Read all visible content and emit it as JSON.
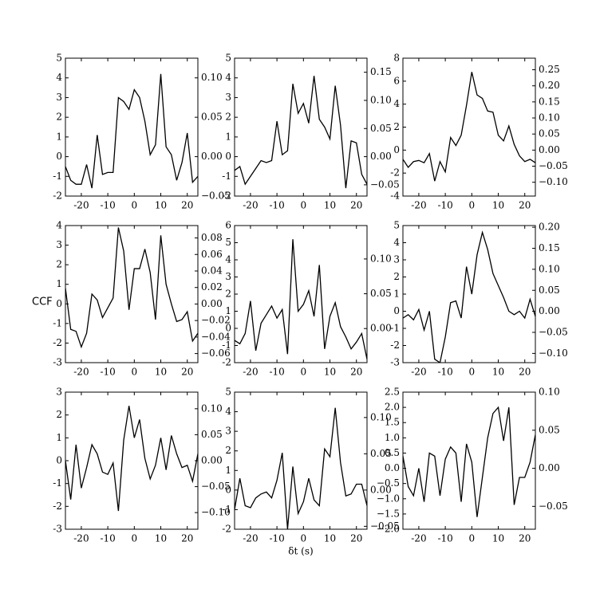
{
  "chart_data": [
    {
      "type": "line",
      "color": "#000000",
      "x": [
        -26,
        -24,
        -22,
        -20,
        -18,
        -16,
        -14,
        -12,
        -10,
        -8,
        -6,
        -4,
        -2,
        0,
        2,
        4,
        6,
        8,
        10,
        12,
        14,
        16,
        18,
        20,
        22,
        24
      ],
      "values": [
        -0.5,
        -1.2,
        -1.4,
        -1.4,
        -0.4,
        -1.6,
        1.1,
        -0.9,
        -0.8,
        -0.8,
        3.0,
        2.8,
        2.4,
        3.4,
        3.0,
        1.8,
        0.1,
        0.6,
        4.2,
        0.5,
        0.1,
        -1.2,
        -0.3,
        1.2,
        -1.3,
        -1.0
      ],
      "xlim": [
        -26,
        24
      ],
      "xticks": [
        -20,
        -10,
        0,
        10,
        20
      ],
      "ylim": [
        -2,
        5
      ],
      "yticks": [
        -2,
        -1,
        0,
        1,
        2,
        3,
        4,
        5
      ],
      "y2lim": [
        -0.05,
        0.125
      ],
      "y2ticks": [
        {
          "value": -0.05,
          "label": "−0.05"
        },
        {
          "value": 0,
          "label": "0.00"
        },
        {
          "value": 0.05,
          "label": "0.05"
        },
        {
          "value": 0.1,
          "label": "0.10"
        }
      ]
    },
    {
      "type": "line",
      "color": "#000000",
      "x": [
        -26,
        -24,
        -22,
        -20,
        -18,
        -16,
        -14,
        -12,
        -10,
        -8,
        -6,
        -4,
        -2,
        0,
        2,
        4,
        6,
        8,
        10,
        12,
        14,
        16,
        18,
        20,
        22,
        24
      ],
      "values": [
        -0.7,
        -0.5,
        -1.4,
        -1.0,
        -0.6,
        -0.2,
        -0.3,
        -0.2,
        1.8,
        0.1,
        0.3,
        3.7,
        2.2,
        2.7,
        1.7,
        4.1,
        1.9,
        1.5,
        0.9,
        3.6,
        1.6,
        -1.6,
        0.8,
        0.7,
        -0.9,
        -1.4
      ],
      "xlim": [
        -26,
        24
      ],
      "xticks": [
        -20,
        -10,
        0,
        10,
        20
      ],
      "ylim": [
        -2,
        5
      ],
      "yticks": [
        -2,
        -1,
        0,
        1,
        2,
        3,
        4,
        5
      ],
      "y2lim": [
        -0.07,
        0.175
      ],
      "y2ticks": [
        {
          "value": -0.05,
          "label": "−0.05"
        },
        {
          "value": 0,
          "label": "0.00"
        },
        {
          "value": 0.05,
          "label": "0.05"
        },
        {
          "value": 0.1,
          "label": "0.10"
        },
        {
          "value": 0.15,
          "label": "0.15"
        }
      ]
    },
    {
      "type": "line",
      "color": "#000000",
      "x": [
        -26,
        -24,
        -22,
        -20,
        -18,
        -16,
        -14,
        -12,
        -10,
        -8,
        -6,
        -4,
        -2,
        0,
        2,
        4,
        6,
        8,
        10,
        12,
        14,
        16,
        18,
        20,
        22,
        24
      ],
      "values": [
        -0.8,
        -1.5,
        -1.0,
        -0.9,
        -1.1,
        -0.3,
        -2.7,
        -1.0,
        -1.9,
        1.1,
        0.4,
        1.3,
        3.9,
        6.8,
        4.8,
        4.5,
        3.4,
        3.3,
        1.3,
        0.8,
        2.1,
        0.5,
        -0.5,
        -1.0,
        -0.8,
        -1.1
      ],
      "xlim": [
        -26,
        24
      ],
      "xticks": [
        -20,
        -10,
        0,
        10,
        20
      ],
      "ylim": [
        -4,
        8
      ],
      "yticks": [
        -4,
        -2,
        0,
        2,
        4,
        6,
        8
      ],
      "y2lim": [
        -0.143,
        0.286
      ],
      "y2ticks": [
        {
          "value": -0.1,
          "label": "−0.10"
        },
        {
          "value": -0.05,
          "label": "−0.05"
        },
        {
          "value": 0,
          "label": "0.00"
        },
        {
          "value": 0.05,
          "label": "0.05"
        },
        {
          "value": 0.1,
          "label": "0.10"
        },
        {
          "value": 0.15,
          "label": "0.15"
        },
        {
          "value": 0.2,
          "label": "0.20"
        },
        {
          "value": 0.25,
          "label": "0.25"
        }
      ]
    },
    {
      "type": "line",
      "color": "#000000",
      "ylabel": "CCF",
      "x": [
        -26,
        -24,
        -22,
        -20,
        -18,
        -16,
        -14,
        -12,
        -10,
        -8,
        -6,
        -4,
        -2,
        0,
        2,
        4,
        6,
        8,
        10,
        12,
        14,
        16,
        18,
        20,
        22,
        24
      ],
      "values": [
        0.8,
        -1.3,
        -1.4,
        -2.2,
        -1.5,
        0.5,
        0.2,
        -0.7,
        -0.2,
        0.3,
        3.9,
        2.7,
        -0.3,
        1.8,
        1.8,
        2.8,
        1.6,
        -0.8,
        3.5,
        1.0,
        0.0,
        -0.9,
        -0.8,
        -0.4,
        -1.9,
        -1.5
      ],
      "xlim": [
        -26,
        24
      ],
      "xticks": [
        -20,
        -10,
        0,
        10,
        20
      ],
      "ylim": [
        -3,
        4
      ],
      "yticks": [
        -3,
        -2,
        -1,
        0,
        1,
        2,
        3,
        4
      ],
      "y2lim": [
        -0.071,
        0.095
      ],
      "y2ticks": [
        {
          "value": -0.06,
          "label": "−0.06"
        },
        {
          "value": -0.04,
          "label": "−0.04"
        },
        {
          "value": -0.02,
          "label": "−0.02"
        },
        {
          "value": 0,
          "label": "0.00"
        },
        {
          "value": 0.02,
          "label": "0.02"
        },
        {
          "value": 0.04,
          "label": "0.04"
        },
        {
          "value": 0.06,
          "label": "0.06"
        },
        {
          "value": 0.08,
          "label": "0.08"
        }
      ]
    },
    {
      "type": "line",
      "color": "#000000",
      "x": [
        -26,
        -24,
        -22,
        -20,
        -18,
        -16,
        -14,
        -12,
        -10,
        -8,
        -6,
        -4,
        -2,
        0,
        2,
        4,
        6,
        8,
        10,
        12,
        14,
        16,
        18,
        20,
        22,
        24
      ],
      "values": [
        -0.7,
        -0.9,
        -0.3,
        1.6,
        -1.3,
        0.3,
        0.8,
        1.3,
        0.6,
        1.1,
        -1.5,
        5.2,
        1.0,
        1.4,
        2.2,
        0.7,
        3.7,
        -1.2,
        0.7,
        1.5,
        0.1,
        -0.5,
        -1.2,
        -0.8,
        -0.3,
        -1.8
      ],
      "xlim": [
        -26,
        24
      ],
      "xticks": [
        -20,
        -10,
        0,
        10,
        20
      ],
      "ylim": [
        -2,
        6
      ],
      "yticks": [
        -2,
        -1,
        0,
        1,
        2,
        3,
        4,
        5,
        6
      ],
      "y2lim": [
        -0.049,
        0.148
      ],
      "y2ticks": [
        {
          "value": 0,
          "label": "0.00"
        },
        {
          "value": 0.05,
          "label": "0.05"
        },
        {
          "value": 0.1,
          "label": "0.10"
        }
      ]
    },
    {
      "type": "line",
      "color": "#000000",
      "x": [
        -26,
        -24,
        -22,
        -20,
        -18,
        -16,
        -14,
        -12,
        -10,
        -8,
        -6,
        -4,
        -2,
        0,
        2,
        4,
        6,
        8,
        10,
        12,
        14,
        16,
        18,
        20,
        22,
        24
      ],
      "values": [
        -0.4,
        -0.2,
        -0.5,
        0.1,
        -1.1,
        0.0,
        -2.8,
        -3.0,
        -1.5,
        0.5,
        0.6,
        -0.4,
        2.6,
        1.0,
        3.3,
        4.6,
        3.6,
        2.2,
        1.5,
        0.8,
        0.0,
        -0.2,
        0.0,
        -0.4,
        0.7,
        -0.3
      ],
      "xlim": [
        -26,
        24
      ],
      "xticks": [
        -20,
        -10,
        0,
        10,
        20
      ],
      "ylim": [
        -3,
        5
      ],
      "yticks": [
        -3,
        -2,
        -1,
        0,
        1,
        2,
        3,
        4,
        5
      ],
      "y2lim": [
        -0.122,
        0.204
      ],
      "y2ticks": [
        {
          "value": -0.1,
          "label": "−0.10"
        },
        {
          "value": -0.05,
          "label": "−0.05"
        },
        {
          "value": 0,
          "label": "0.00"
        },
        {
          "value": 0.05,
          "label": "0.05"
        },
        {
          "value": 0.1,
          "label": "0.10"
        },
        {
          "value": 0.15,
          "label": "0.15"
        },
        {
          "value": 0.2,
          "label": "0.20"
        }
      ]
    },
    {
      "type": "line",
      "color": "#000000",
      "x": [
        -26,
        -24,
        -22,
        -20,
        -18,
        -16,
        -14,
        -12,
        -10,
        -8,
        -6,
        -4,
        -2,
        0,
        2,
        4,
        6,
        8,
        10,
        12,
        14,
        16,
        18,
        20,
        22,
        24
      ],
      "values": [
        0.0,
        -1.7,
        0.7,
        -1.2,
        -0.3,
        0.7,
        0.3,
        -0.5,
        -0.6,
        -0.1,
        -2.2,
        0.9,
        2.4,
        1.0,
        1.8,
        0.1,
        -0.8,
        -0.2,
        1.0,
        -0.4,
        1.1,
        0.3,
        -0.3,
        -0.2,
        -0.9,
        0.3
      ],
      "xlim": [
        -26,
        24
      ],
      "xticks": [
        -20,
        -10,
        0,
        10,
        20
      ],
      "ylim": [
        -3,
        3
      ],
      "yticks": [
        -3,
        -2,
        -1,
        0,
        1,
        2,
        3
      ],
      "y2lim": [
        -0.132,
        0.132
      ],
      "y2ticks": [
        {
          "value": -0.1,
          "label": "−0.10"
        },
        {
          "value": -0.05,
          "label": "−0.05"
        },
        {
          "value": 0,
          "label": "0.00"
        },
        {
          "value": 0.05,
          "label": "0.05"
        },
        {
          "value": 0.1,
          "label": "0.10"
        }
      ]
    },
    {
      "type": "line",
      "color": "#000000",
      "xlabel": "δt (s)",
      "x": [
        -26,
        -24,
        -22,
        -20,
        -18,
        -16,
        -14,
        -12,
        -10,
        -8,
        -6,
        -4,
        -2,
        0,
        2,
        4,
        6,
        8,
        10,
        12,
        14,
        16,
        18,
        20,
        22,
        24
      ],
      "values": [
        -1.0,
        0.6,
        -0.8,
        -0.9,
        -0.4,
        -0.2,
        -0.1,
        -0.4,
        0.5,
        1.9,
        -2.0,
        1.2,
        -1.2,
        -0.6,
        0.6,
        -0.5,
        -0.8,
        2.1,
        1.7,
        4.2,
        1.4,
        -0.3,
        -0.2,
        0.3,
        0.3,
        -0.8
      ],
      "xlim": [
        -26,
        24
      ],
      "xticks": [
        -20,
        -10,
        0,
        10,
        20
      ],
      "ylim": [
        -2,
        5
      ],
      "yticks": [
        -2,
        -1,
        0,
        1,
        2,
        3,
        4,
        5
      ],
      "y2lim": [
        -0.054,
        0.135
      ],
      "y2ticks": [
        {
          "value": -0.05,
          "label": "−0.05"
        },
        {
          "value": 0,
          "label": "0.00"
        },
        {
          "value": 0.05,
          "label": "0.05"
        },
        {
          "value": 0.1,
          "label": "0.10"
        }
      ]
    },
    {
      "type": "line",
      "color": "#000000",
      "x": [
        -26,
        -24,
        -22,
        -20,
        -18,
        -16,
        -14,
        -12,
        -10,
        -8,
        -6,
        -4,
        -2,
        0,
        2,
        4,
        6,
        8,
        10,
        12,
        14,
        16,
        18,
        20,
        22,
        24
      ],
      "values": [
        0.4,
        -0.6,
        -0.9,
        0.0,
        -1.1,
        0.5,
        0.4,
        -0.9,
        0.3,
        0.7,
        0.5,
        -1.1,
        0.8,
        0.2,
        -1.6,
        -0.3,
        1.0,
        1.8,
        2.0,
        0.9,
        2.0,
        -1.2,
        -0.3,
        -0.3,
        0.2,
        1.1
      ],
      "xlim": [
        -26,
        24
      ],
      "xticks": [
        -20,
        -10,
        0,
        10,
        20
      ],
      "ylim": [
        -2,
        2.5
      ],
      "yticks": [
        {
          "value": -2,
          "label": "−2.0"
        },
        {
          "value": -1.5,
          "label": "−1.5"
        },
        {
          "value": -1,
          "label": "−1.0"
        },
        {
          "value": -0.5,
          "label": "−0.5"
        },
        {
          "value": 0,
          "label": "0.0"
        },
        {
          "value": 0.5,
          "label": "0.5"
        },
        {
          "value": 1,
          "label": "1.0"
        },
        {
          "value": 1.5,
          "label": "1.5"
        },
        {
          "value": 2,
          "label": "2.0"
        },
        {
          "value": 2.5,
          "label": "2.5"
        }
      ],
      "y2lim": [
        -0.08,
        0.1
      ],
      "y2ticks": [
        {
          "value": -0.05,
          "label": "−0.05"
        },
        {
          "value": 0,
          "label": "0.00"
        },
        {
          "value": 0.05,
          "label": "0.05"
        },
        {
          "value": 0.1,
          "label": "0.10"
        }
      ]
    }
  ]
}
